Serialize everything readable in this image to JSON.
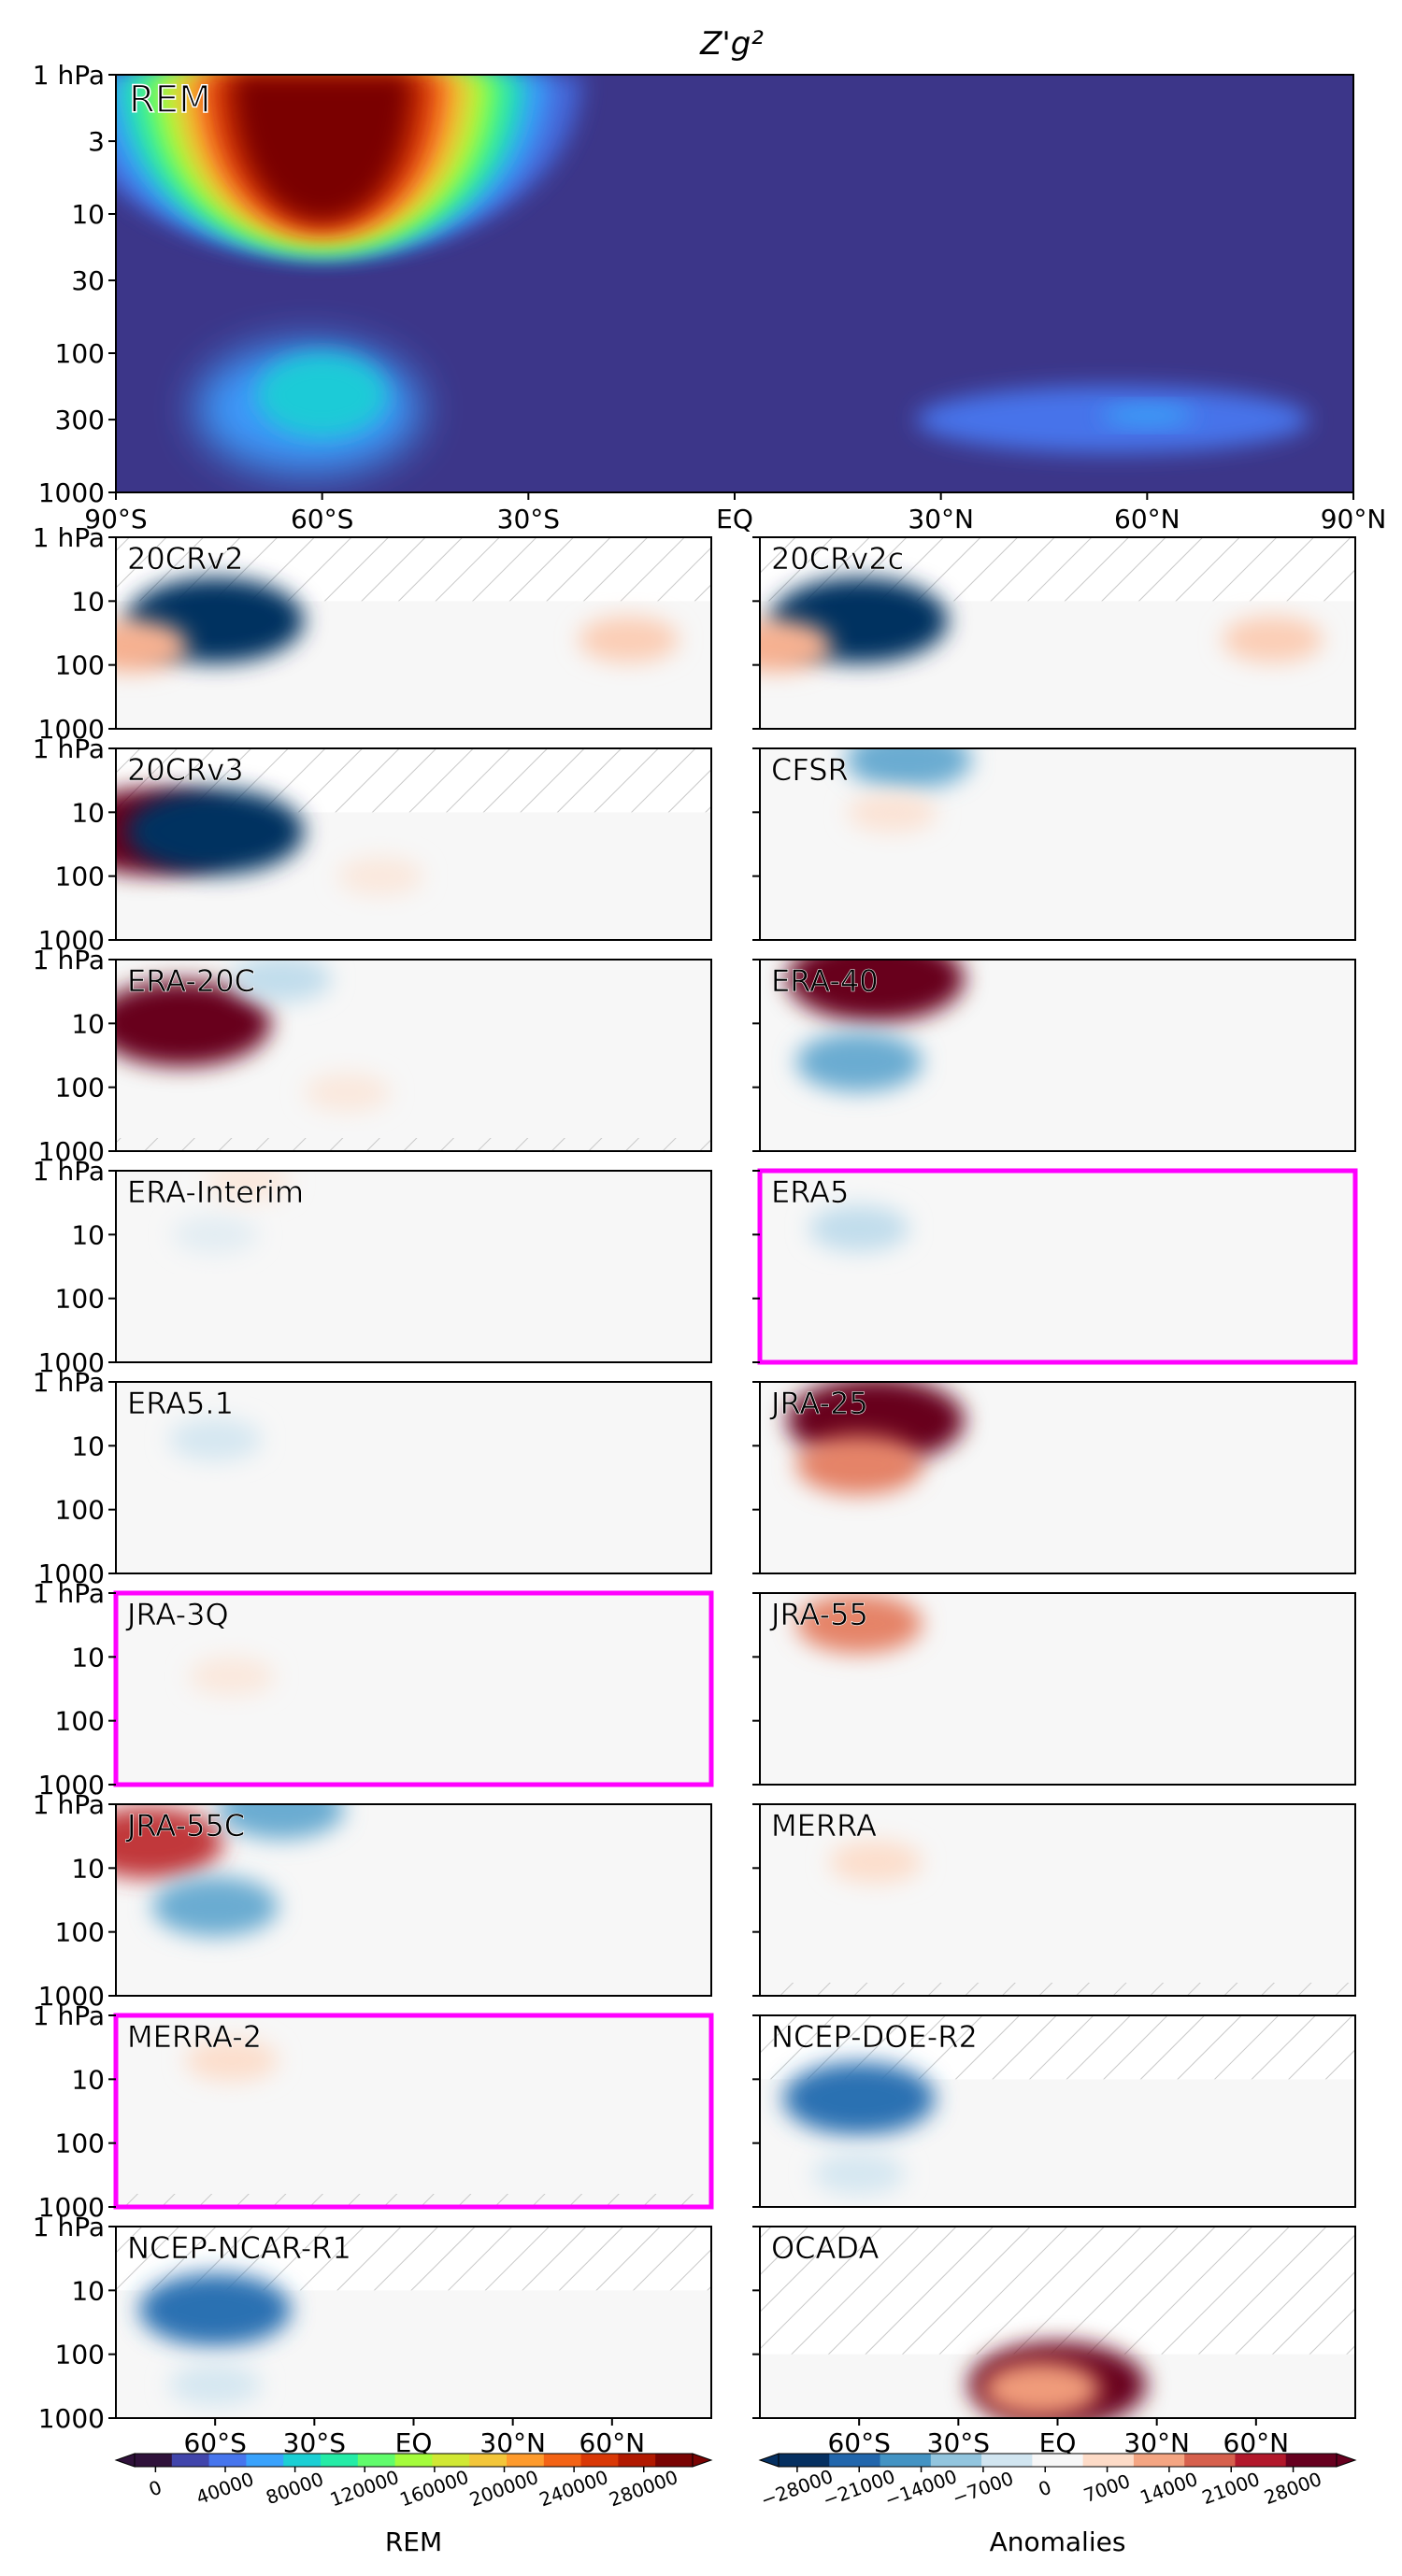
{
  "figure": {
    "title": "Z'g²",
    "colorbar_rem": {
      "label": "REM",
      "ticks": [
        "0",
        "40000",
        "80000",
        "120000",
        "160000",
        "200000",
        "240000",
        "280000"
      ],
      "colors": [
        "#30123b",
        "#4145ab",
        "#4675ed",
        "#39a2fc",
        "#1bcfd4",
        "#24eca6",
        "#61fc6c",
        "#a4fc3b",
        "#d1e834",
        "#f3c63a",
        "#fe9b2d",
        "#f36315",
        "#d93806",
        "#b11901",
        "#7a0403"
      ]
    },
    "colorbar_anom": {
      "label": "Anomalies",
      "ticks": [
        "−28000",
        "−21000",
        "−14000",
        "−7000",
        "0",
        "7000",
        "14000",
        "21000",
        "28000"
      ],
      "colors": [
        "#053061",
        "#2166ac",
        "#4393c3",
        "#92c5de",
        "#d1e5f0",
        "#f7f7f7",
        "#fddbc7",
        "#f4a582",
        "#d6604d",
        "#b2182b",
        "#67001f"
      ]
    }
  },
  "chart_data": [
    {
      "type": "heatmap",
      "panel": "REM",
      "label": "REM",
      "x_ticks": [
        "90°S",
        "60°S",
        "30°S",
        "EQ",
        "30°N",
        "60°N",
        "90°N"
      ],
      "y_ticks": [
        "1 hPa",
        "3",
        "10",
        "30",
        "100",
        "300",
        "1000"
      ],
      "xlim": [
        -90,
        90
      ],
      "ylim": [
        1000,
        1
      ],
      "yscale": "log",
      "features": [
        {
          "lat": -60,
          "p": 1,
          "value": 280000
        },
        {
          "lat": -60,
          "p": 10,
          "value": 280000
        },
        {
          "lat": -60,
          "p": 200,
          "value": 60000
        },
        {
          "lat": 50,
          "p": 250,
          "value": 40000
        }
      ]
    },
    {
      "type": "heatmap",
      "quantity": "Anomalies",
      "x_ticks": [
        "60°S",
        "30°S",
        "EQ",
        "30°N",
        "60°N"
      ],
      "y_ticks": [
        "1 hPa",
        "10",
        "100",
        "1000"
      ],
      "panels": [
        {
          "label": "20CRv2",
          "highlight": false,
          "hatch_top_to": 10,
          "hatch_bottom": false,
          "features": [
            {
              "lat": -60,
              "p": 20,
              "value": -28000
            },
            {
              "lat": -85,
              "p": 50,
              "value": 10000
            },
            {
              "lat": 65,
              "p": 40,
              "value": 7000
            }
          ]
        },
        {
          "label": "20CRv2c",
          "highlight": false,
          "hatch_top_to": 10,
          "hatch_bottom": false,
          "features": [
            {
              "lat": -60,
              "p": 20,
              "value": -28000
            },
            {
              "lat": -85,
              "p": 50,
              "value": 10000
            },
            {
              "lat": 65,
              "p": 40,
              "value": 7000
            }
          ]
        },
        {
          "label": "20CRv3",
          "highlight": false,
          "hatch_top_to": 10,
          "hatch_bottom": false,
          "features": [
            {
              "lat": -80,
              "p": 20,
              "value": 28000
            },
            {
              "lat": -60,
              "p": 20,
              "value": -28000
            },
            {
              "lat": -10,
              "p": 100,
              "value": 3000
            }
          ]
        },
        {
          "label": "CFSR",
          "highlight": false,
          "hatch_top_to": null,
          "hatch_bottom": false,
          "features": [
            {
              "lat": -45,
              "p": 1.5,
              "value": -14000
            },
            {
              "lat": -50,
              "p": 10,
              "value": 4000
            }
          ]
        },
        {
          "label": "ERA-20C",
          "highlight": false,
          "hatch_top_to": null,
          "hatch_bottom": true,
          "features": [
            {
              "lat": -70,
              "p": 10,
              "value": 28000
            },
            {
              "lat": -40,
              "p": 2,
              "value": -7000
            },
            {
              "lat": -20,
              "p": 120,
              "value": 3000
            }
          ]
        },
        {
          "label": "ERA-40",
          "highlight": false,
          "hatch_top_to": null,
          "hatch_bottom": false,
          "features": [
            {
              "lat": -55,
              "p": 2,
              "value": 28000
            },
            {
              "lat": -60,
              "p": 40,
              "value": -14000
            }
          ]
        },
        {
          "label": "ERA-Interim",
          "highlight": false,
          "hatch_top_to": null,
          "hatch_bottom": false,
          "features": [
            {
              "lat": -60,
              "p": 10,
              "value": -3000
            },
            {
              "lat": -50,
              "p": 1.5,
              "value": 3000
            }
          ]
        },
        {
          "label": "ERA5",
          "highlight": true,
          "hatch_top_to": null,
          "hatch_bottom": false,
          "features": [
            {
              "lat": -60,
              "p": 8,
              "value": -7000
            }
          ]
        },
        {
          "label": "ERA5.1",
          "highlight": false,
          "hatch_top_to": null,
          "hatch_bottom": false,
          "features": [
            {
              "lat": -60,
              "p": 8,
              "value": -5000
            }
          ]
        },
        {
          "label": "JRA-25",
          "highlight": false,
          "hatch_top_to": null,
          "hatch_bottom": false,
          "features": [
            {
              "lat": -55,
              "p": 4,
              "value": 28000
            },
            {
              "lat": -60,
              "p": 20,
              "value": 14000
            }
          ]
        },
        {
          "label": "JRA-3Q",
          "highlight": true,
          "hatch_top_to": null,
          "hatch_bottom": false,
          "features": [
            {
              "lat": -55,
              "p": 20,
              "value": 3000
            }
          ]
        },
        {
          "label": "JRA-55",
          "highlight": false,
          "hatch_top_to": null,
          "hatch_bottom": false,
          "features": [
            {
              "lat": -60,
              "p": 3,
              "value": 14000
            }
          ]
        },
        {
          "label": "JRA-55C",
          "highlight": false,
          "hatch_top_to": null,
          "hatch_bottom": false,
          "features": [
            {
              "lat": -80,
              "p": 4,
              "value": 20000
            },
            {
              "lat": -40,
              "p": 1.2,
              "value": -14000
            },
            {
              "lat": -60,
              "p": 40,
              "value": -14000
            }
          ]
        },
        {
          "label": "MERRA",
          "highlight": false,
          "hatch_top_to": null,
          "hatch_bottom": true,
          "features": [
            {
              "lat": -55,
              "p": 8,
              "value": 5000
            }
          ]
        },
        {
          "label": "MERRA-2",
          "highlight": true,
          "hatch_top_to": null,
          "hatch_bottom": true,
          "features": [
            {
              "lat": -55,
              "p": 5,
              "value": 5000
            }
          ]
        },
        {
          "label": "NCEP-DOE-R2",
          "highlight": false,
          "hatch_top_to": 10,
          "hatch_bottom": false,
          "features": [
            {
              "lat": -60,
              "p": 20,
              "value": -21000
            },
            {
              "lat": -60,
              "p": 300,
              "value": -5000
            }
          ]
        },
        {
          "label": "NCEP-NCAR-R1",
          "highlight": false,
          "hatch_top_to": 10,
          "hatch_bottom": false,
          "features": [
            {
              "lat": -60,
              "p": 20,
              "value": -21000
            },
            {
              "lat": -60,
              "p": 300,
              "value": -5000
            }
          ]
        },
        {
          "label": "OCADA",
          "highlight": false,
          "hatch_top_to": 100,
          "hatch_bottom": false,
          "features": [
            {
              "lat": 0,
              "p": 300,
              "value": 28000
            },
            {
              "lat": -5,
              "p": 350,
              "value": 12000
            }
          ]
        }
      ]
    }
  ]
}
